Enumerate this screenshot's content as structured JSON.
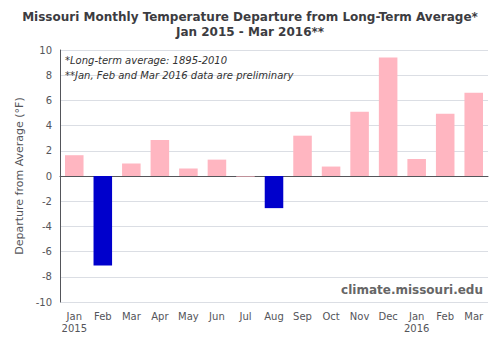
{
  "chart_data": {
    "type": "bar",
    "title": "Missouri Monthly Temperature Departure from Long-Term Average*\nJan 2015 - Mar 2016**",
    "ylabel": "Departure from Average (°F)",
    "annotations": [
      "*Long-term average: 1895-2010",
      "**Jan, Feb and Mar 2016 data are preliminary"
    ],
    "watermark": "climate.missouri.edu",
    "categories": [
      "Jan\n2015",
      "Feb",
      "Mar",
      "Apr",
      "May",
      "Jun",
      "Jul",
      "Aug",
      "Sep",
      "Oct",
      "Nov",
      "Dec",
      "Jan\n2016",
      "Feb",
      "Mar"
    ],
    "values": [
      1.65,
      -7.1,
      1.0,
      2.85,
      0.6,
      1.3,
      -0.05,
      -2.55,
      3.2,
      0.75,
      5.1,
      9.4,
      1.35,
      4.95,
      6.6
    ],
    "colors": [
      "#FFB6C1",
      "#0000CC",
      "#FFB6C1",
      "#FFB6C1",
      "#FFB6C1",
      "#FFB6C1",
      "#FFB6C1",
      "#0000CC",
      "#FFB6C1",
      "#FFB6C1",
      "#FFB6C1",
      "#FFB6C1",
      "#FFB6C1",
      "#FFB6C1",
      "#FFB6C1"
    ],
    "ylim": [
      -10.0,
      10.0
    ],
    "yticks": [
      -10,
      -8,
      -6,
      -4,
      -2,
      0,
      2,
      4,
      6,
      8,
      10
    ],
    "grid": true
  }
}
